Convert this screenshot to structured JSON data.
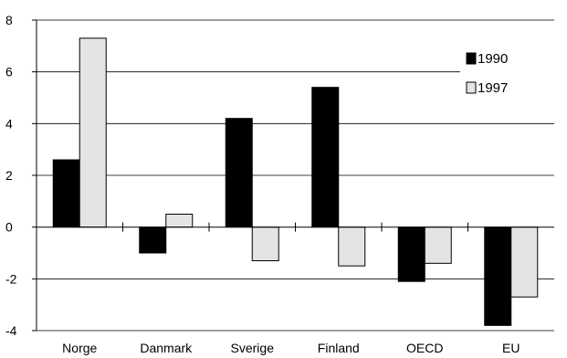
{
  "chart_data": {
    "type": "bar",
    "title": "",
    "xlabel": "",
    "ylabel": "",
    "categories": [
      "Norge",
      "Danmark",
      "Sverige",
      "Finland",
      "OECD",
      "EU"
    ],
    "series": [
      {
        "name": "1990",
        "values": [
          2.6,
          -1.0,
          4.2,
          5.4,
          -2.1,
          -3.8
        ],
        "color": "#000000"
      },
      {
        "name": "1997",
        "values": [
          7.3,
          0.5,
          -1.3,
          -1.5,
          -1.4,
          -2.7
        ],
        "color": "#e4e4e4"
      }
    ],
    "yticks": [
      "8",
      "6",
      "4",
      "2",
      "0",
      "-2",
      "-4"
    ],
    "ylim": [
      -4,
      8
    ],
    "grid": true,
    "legend_position": "top-right"
  }
}
